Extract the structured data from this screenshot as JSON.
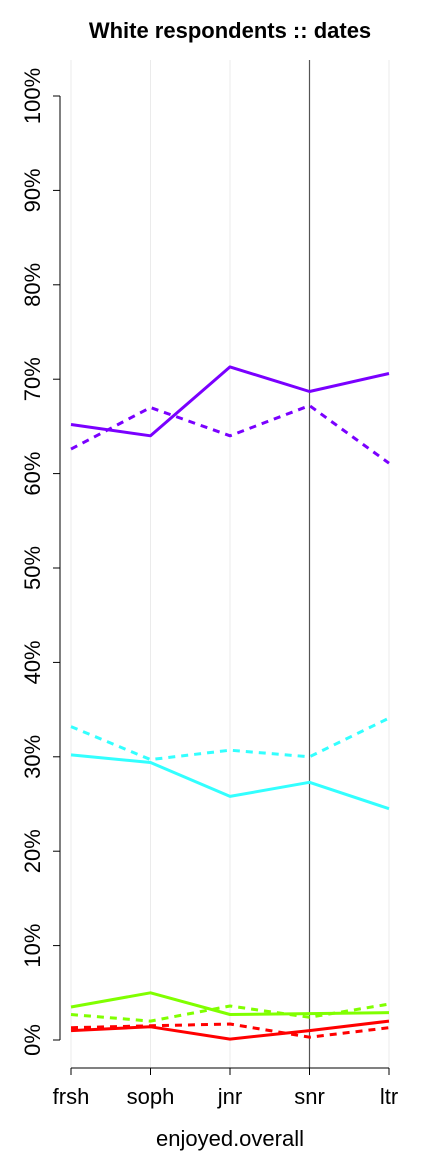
{
  "chart_data": {
    "type": "line",
    "title": "White respondents :: dates",
    "xlabel": "enjoyed.overall",
    "ylabel": "",
    "categories": [
      "frsh",
      "soph",
      "jnr",
      "snr",
      "ltr"
    ],
    "ylim": [
      0,
      100
    ],
    "yticks": [
      0,
      10,
      20,
      30,
      40,
      50,
      60,
      70,
      80,
      90,
      100
    ],
    "ytick_labels": [
      "0%",
      "10%",
      "20%",
      "30%",
      "40%",
      "50%",
      "60%",
      "70%",
      "80%",
      "90%",
      "100%"
    ],
    "vertical_reference_line": "snr",
    "grid": "vertical",
    "series": [
      {
        "color": "#7a00ff",
        "dash": "solid",
        "values": [
          65.2,
          64.0,
          71.3,
          68.7,
          70.6
        ]
      },
      {
        "color": "#7a00ff",
        "dash": "dotted",
        "values": [
          62.6,
          67.0,
          64.0,
          67.2,
          61.1
        ]
      },
      {
        "color": "#33ffff",
        "dash": "solid",
        "values": [
          30.2,
          29.4,
          25.8,
          27.3,
          24.5
        ]
      },
      {
        "color": "#33ffff",
        "dash": "dotted",
        "values": [
          33.2,
          29.7,
          30.7,
          30.0,
          34.1
        ]
      },
      {
        "color": "#80ff00",
        "dash": "solid",
        "values": [
          3.5,
          5.0,
          2.7,
          2.8,
          2.9
        ]
      },
      {
        "color": "#80ff00",
        "dash": "dotted",
        "values": [
          2.7,
          2.0,
          3.6,
          2.4,
          3.8
        ]
      },
      {
        "color": "#ff0000",
        "dash": "solid",
        "values": [
          1.0,
          1.4,
          0.1,
          1.0,
          2.0
        ]
      },
      {
        "color": "#ff0000",
        "dash": "dotted",
        "values": [
          1.3,
          1.5,
          1.7,
          0.3,
          1.3
        ]
      }
    ]
  }
}
